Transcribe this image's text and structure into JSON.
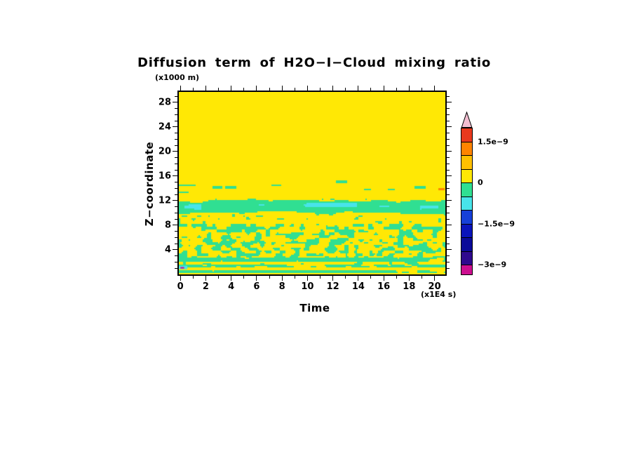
{
  "chart_data": {
    "type": "heatmap",
    "title": "Diffusion term of H2O−I−Cloud mixing ratio",
    "xlabel": "Time",
    "x_units": "(x1E4 s)",
    "ylabel": "Z−coordinate",
    "y_units": "(x1000 m)",
    "xlim": [
      -0.12,
      20.85
    ],
    "ylim": [
      0,
      29.7
    ],
    "x_ticks": [
      0,
      2,
      4,
      6,
      8,
      10,
      12,
      14,
      16,
      18,
      20
    ],
    "x_minor_step": 1,
    "y_ticks": [
      4,
      8,
      12,
      16,
      20,
      24,
      28
    ],
    "y_minor_step": 1,
    "grid": false,
    "colorbar": {
      "contour_interval": "5e−10",
      "segments": [
        {
          "range": "1.5e−9 to 2e−9",
          "color": "#e8391d"
        },
        {
          "range": "1e−9 to 1.5e−9",
          "color": "#ff8400"
        },
        {
          "range": "5e−10 to 1e−9",
          "color": "#ffc000"
        },
        {
          "range": "0 to 5e−10",
          "color": "#ffe805"
        },
        {
          "range": "−5e−10 to 0",
          "color": "#30df92"
        },
        {
          "range": "−1e−9 to −5e−10",
          "color": "#48e4ea"
        },
        {
          "range": "−1.5e−9 to −1e−9",
          "color": "#1640d8"
        },
        {
          "range": "−2e−9 to −1.5e−9",
          "color": "#0a14bb"
        },
        {
          "range": "−2.5e−9 to −2e−9",
          "color": "#0b0b99"
        },
        {
          "range": "−3e−9 to −2.5e−9",
          "color": "#2f0a8e"
        },
        {
          "range": "below −3e−9",
          "color": "#cd0f90"
        }
      ],
      "arrow_color": "#f2bdd0",
      "labels": [
        {
          "text": "1.5e−9",
          "boundary_index": 1
        },
        {
          "text": "0",
          "boundary_index": 4
        },
        {
          "text": "−1.5e−9",
          "boundary_index": 7
        },
        {
          "text": "−3e−9",
          "boundary_index": 10
        }
      ]
    },
    "field": {
      "description": "Mostly weak positive values (yellow, 0 to 5e−10) with weak negative patches (green, −5e−10 to 0); a continuous negative band near z=10−12 containing stronger negative cyan streaks (about −1e−9); speckled negative patches below z=8; near-surface alternating green/yellow stripes; small cyan and magenta extreme values at the lower-left edge.",
      "colors": {
        "yellow": "#ffe805",
        "green": "#30df92",
        "cyan": "#48e4ea",
        "magenta": "#cd0f90",
        "orange": "#ff8400"
      },
      "band": {
        "z_bottom": 9.95,
        "z_top": 11.95,
        "waviness": 0.9
      },
      "cyan_streaks": [
        {
          "x0": 0.35,
          "x1": 1.7,
          "z": 11.0,
          "h": 0.5
        },
        {
          "x0": 6.15,
          "x1": 6.65,
          "z": 11.25,
          "h": 0.25
        },
        {
          "x0": 9.65,
          "x1": 13.9,
          "z": 11.3,
          "h": 0.5
        },
        {
          "x0": 15.65,
          "x1": 16.45,
          "z": 11.1,
          "h": 0.35
        },
        {
          "x0": 18.85,
          "x1": 20.35,
          "z": 10.95,
          "h": 0.4
        }
      ],
      "speckle_zones": [
        {
          "z0": 12.05,
          "z1": 12.8,
          "density": 0.07
        },
        {
          "z0": 8.2,
          "z1": 9.75,
          "density": 0.22
        },
        {
          "z0": 2.75,
          "z1": 8.2,
          "density": 0.42
        },
        {
          "z0": 1.55,
          "z1": 2.05,
          "density": 0.25
        }
      ],
      "stripe_zones": [
        {
          "z0": 2.05,
          "z1": 2.75,
          "density": 0.85
        },
        {
          "z0": 1.1,
          "z1": 1.5,
          "density": 0.7
        },
        {
          "z0": 0.3,
          "z1": 0.65,
          "density": 0.78
        }
      ],
      "wisps": [
        {
          "x0": -0.1,
          "x1": 1.25,
          "z": 14.55,
          "h": 0.35
        },
        {
          "x0": 1.8,
          "x1": 4.4,
          "z": 14.1,
          "h": 0.4
        },
        {
          "x0": -0.1,
          "x1": 0.6,
          "z": 13.35,
          "h": 0.3
        },
        {
          "x0": 7.15,
          "x1": 7.95,
          "z": 14.5,
          "h": 0.3
        },
        {
          "x0": 12.2,
          "x1": 13.1,
          "z": 15.05,
          "h": 0.3
        },
        {
          "x0": 14.4,
          "x1": 15.0,
          "z": 13.9,
          "h": 0.25
        },
        {
          "x0": 16.3,
          "x1": 16.9,
          "z": 13.8,
          "h": 0.25
        },
        {
          "x0": 18.1,
          "x1": 19.3,
          "z": 14.15,
          "h": 0.3
        }
      ],
      "orange_dashes": [
        {
          "x0": 20.3,
          "x1": 20.8,
          "z0": 13.7,
          "z1": 14.05
        }
      ],
      "specks": [
        {
          "x0": -0.12,
          "x1": 0.55,
          "z0": 0.85,
          "z1": 1.4,
          "color": "cyan"
        },
        {
          "x0": 0.0,
          "x1": 0.3,
          "z0": 0.95,
          "z1": 1.2,
          "color": "magenta"
        }
      ]
    }
  }
}
